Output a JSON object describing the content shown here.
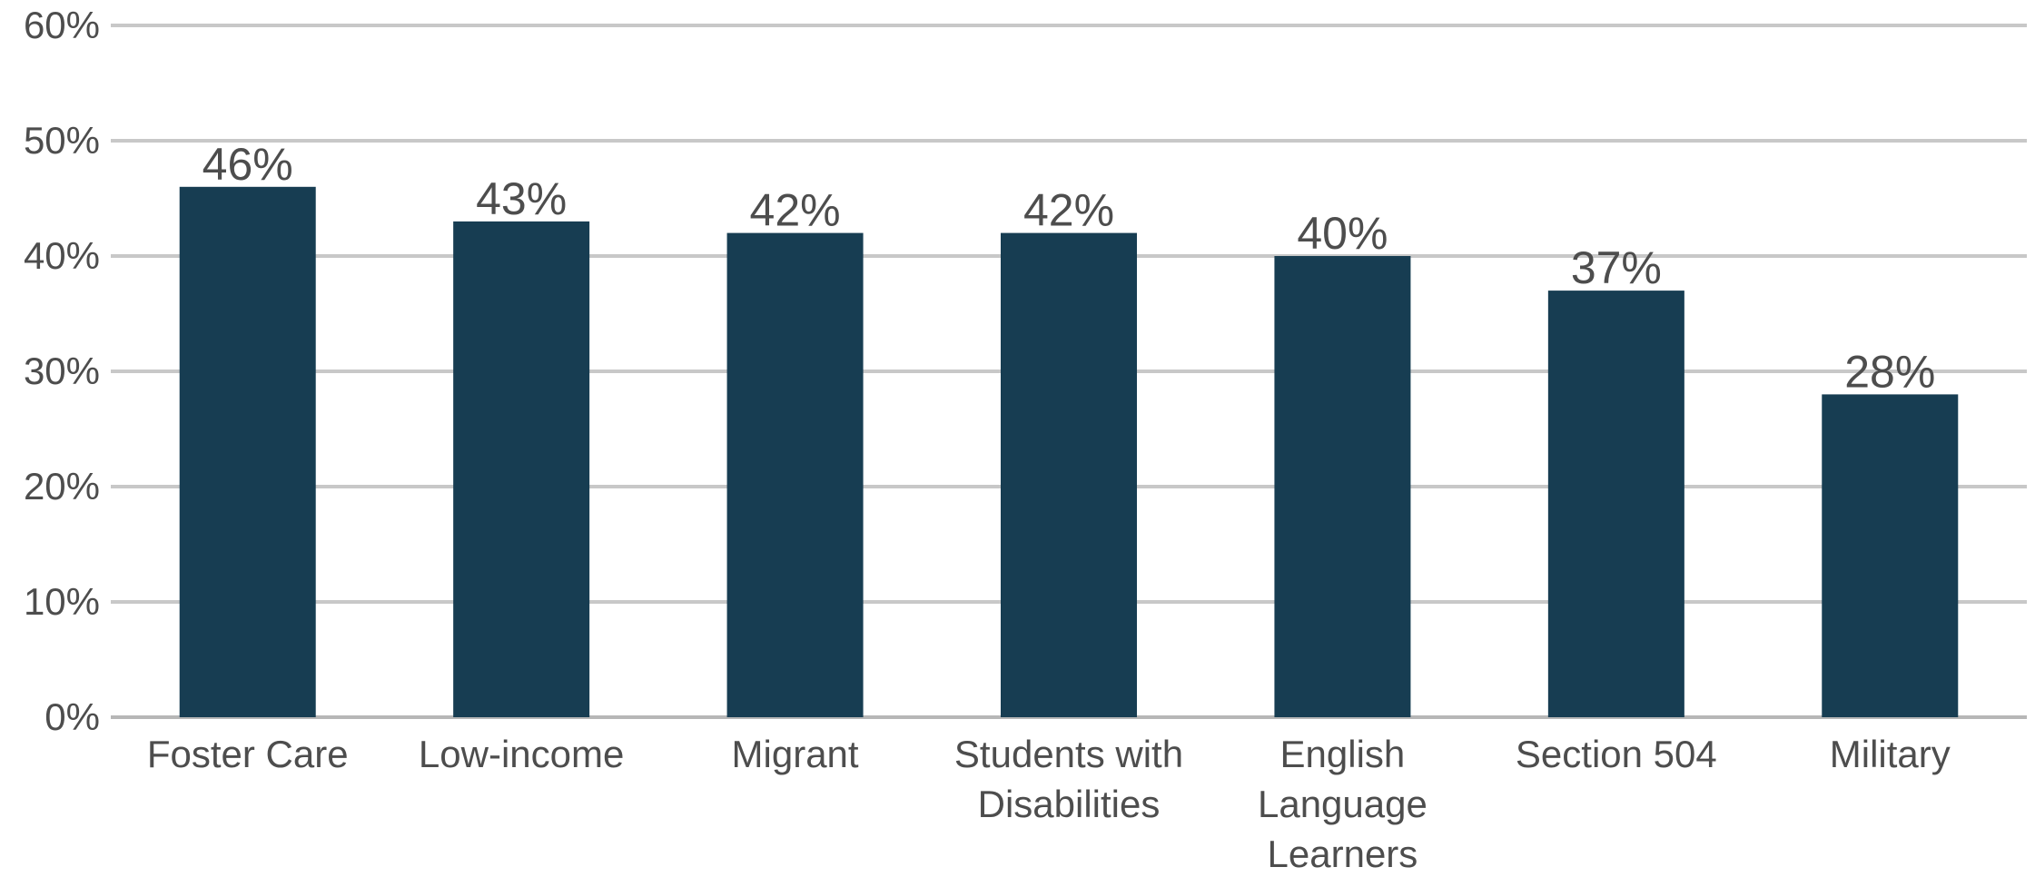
{
  "chart_data": {
    "type": "bar",
    "categories": [
      [
        "Foster Care"
      ],
      [
        "Low-income"
      ],
      [
        "Migrant"
      ],
      [
        "Students with",
        "Disabilities"
      ],
      [
        "English",
        "Language",
        "Learners"
      ],
      [
        "Section 504"
      ],
      [
        "Military"
      ]
    ],
    "values": [
      46,
      43,
      42,
      42,
      40,
      37,
      28
    ],
    "data_labels": [
      "46%",
      "43%",
      "42%",
      "42%",
      "40%",
      "37%",
      "28%"
    ],
    "yticks": [
      0,
      10,
      20,
      30,
      40,
      50,
      60
    ],
    "ytick_labels": [
      "0%",
      "10%",
      "20%",
      "30%",
      "40%",
      "50%",
      "60%"
    ],
    "ylim": [
      0,
      60
    ],
    "grid": true,
    "legend": "none",
    "title": "",
    "xlabel": "",
    "ylabel": "",
    "colors": {
      "bar": "#173d52",
      "grid": "#c8c8c8",
      "axis": "#b7b7b7",
      "text": "#4d4d4d"
    }
  }
}
